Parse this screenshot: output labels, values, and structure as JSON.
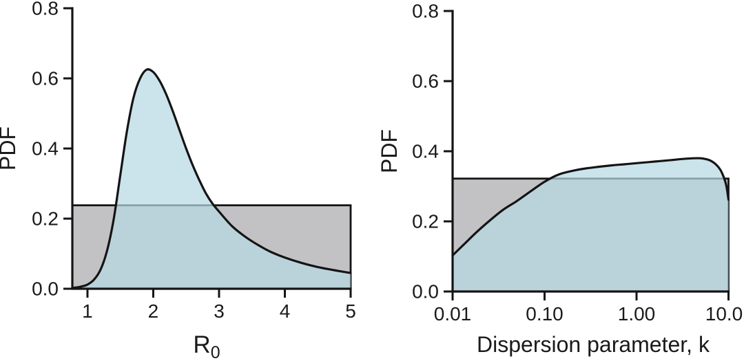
{
  "figure": {
    "background": "#ffffff"
  },
  "chart_data": [
    {
      "id": "r0-posterior-chart",
      "type": "area",
      "xscale": "linear",
      "xlim": [
        0.77,
        5
      ],
      "ylim": [
        0,
        0.8
      ],
      "xticks": [
        1,
        2,
        3,
        4,
        5
      ],
      "xtick_labels": [
        "1",
        "2",
        "3",
        "4",
        "5"
      ],
      "yticks": [
        0.0,
        0.2,
        0.4,
        0.6,
        0.8
      ],
      "ytick_labels": [
        "0.0",
        "0.2",
        "0.4",
        "0.6",
        "0.8"
      ],
      "xlabel": {
        "main": "R",
        "sub": "0"
      },
      "ylabel": "PDF",
      "grid": false,
      "legend": "none",
      "series": [
        {
          "name": "uniform-prior-band",
          "kind": "uniform",
          "height": 0.238,
          "fill": "#c2c2c4",
          "stroke": "#141414"
        },
        {
          "name": "posterior-density",
          "kind": "curve",
          "fill": "rgba(183,218,227,0.72)",
          "stroke": "#141414",
          "points": [
            [
              0.77,
              0.002
            ],
            [
              0.9,
              0.006
            ],
            [
              1.0,
              0.012
            ],
            [
              1.1,
              0.026
            ],
            [
              1.2,
              0.055
            ],
            [
              1.3,
              0.11
            ],
            [
              1.4,
              0.2
            ],
            [
              1.5,
              0.325
            ],
            [
              1.6,
              0.45
            ],
            [
              1.7,
              0.545
            ],
            [
              1.8,
              0.6
            ],
            [
              1.9,
              0.625
            ],
            [
              2.0,
              0.618
            ],
            [
              2.1,
              0.592
            ],
            [
              2.2,
              0.553
            ],
            [
              2.3,
              0.505
            ],
            [
              2.4,
              0.452
            ],
            [
              2.5,
              0.4
            ],
            [
              2.6,
              0.352
            ],
            [
              2.7,
              0.31
            ],
            [
              2.8,
              0.272
            ],
            [
              2.9,
              0.243
            ],
            [
              3.0,
              0.22
            ],
            [
              3.2,
              0.178
            ],
            [
              3.4,
              0.148
            ],
            [
              3.6,
              0.124
            ],
            [
              3.8,
              0.104
            ],
            [
              4.0,
              0.089
            ],
            [
              4.25,
              0.074
            ],
            [
              4.5,
              0.062
            ],
            [
              4.75,
              0.053
            ],
            [
              5.0,
              0.045
            ]
          ]
        }
      ]
    },
    {
      "id": "dispersion-posterior-chart",
      "type": "area",
      "xscale": "log",
      "xlim": [
        0.01,
        10
      ],
      "ylim": [
        0,
        0.8
      ],
      "xticks": [
        0.01,
        0.1,
        1,
        10
      ],
      "xtick_labels": [
        "0.01",
        "0.10",
        "1.00",
        "10.0"
      ],
      "yticks": [
        0.0,
        0.2,
        0.4,
        0.6,
        0.8
      ],
      "ytick_labels": [
        "0.0",
        "0.2",
        "0.4",
        "0.6",
        "0.8"
      ],
      "xlabel": {
        "main": "Dispersion parameter, k",
        "sub": ""
      },
      "ylabel": "PDF",
      "grid": false,
      "legend": "none",
      "series": [
        {
          "name": "uniform-prior-band",
          "kind": "uniform",
          "height": 0.322,
          "fill": "#c2c2c4",
          "stroke": "#141414"
        },
        {
          "name": "posterior-density",
          "kind": "curve",
          "fill": "rgba(183,218,227,0.72)",
          "stroke": "#141414",
          "points": [
            [
              0.01,
              0.103
            ],
            [
              0.013,
              0.132
            ],
            [
              0.018,
              0.168
            ],
            [
              0.025,
              0.201
            ],
            [
              0.035,
              0.232
            ],
            [
              0.05,
              0.258
            ],
            [
              0.07,
              0.285
            ],
            [
              0.1,
              0.313
            ],
            [
              0.14,
              0.333
            ],
            [
              0.2,
              0.344
            ],
            [
              0.28,
              0.351
            ],
            [
              0.4,
              0.356
            ],
            [
              0.55,
              0.36
            ],
            [
              0.75,
              0.363
            ],
            [
              1.0,
              0.366
            ],
            [
              1.35,
              0.369
            ],
            [
              1.8,
              0.372
            ],
            [
              2.4,
              0.375
            ],
            [
              3.2,
              0.378
            ],
            [
              4.2,
              0.38
            ],
            [
              5.0,
              0.38
            ],
            [
              5.8,
              0.377
            ],
            [
              6.6,
              0.371
            ],
            [
              7.4,
              0.361
            ],
            [
              8.2,
              0.346
            ],
            [
              9.0,
              0.322
            ],
            [
              9.5,
              0.3
            ],
            [
              10.0,
              0.262
            ]
          ]
        }
      ]
    }
  ]
}
